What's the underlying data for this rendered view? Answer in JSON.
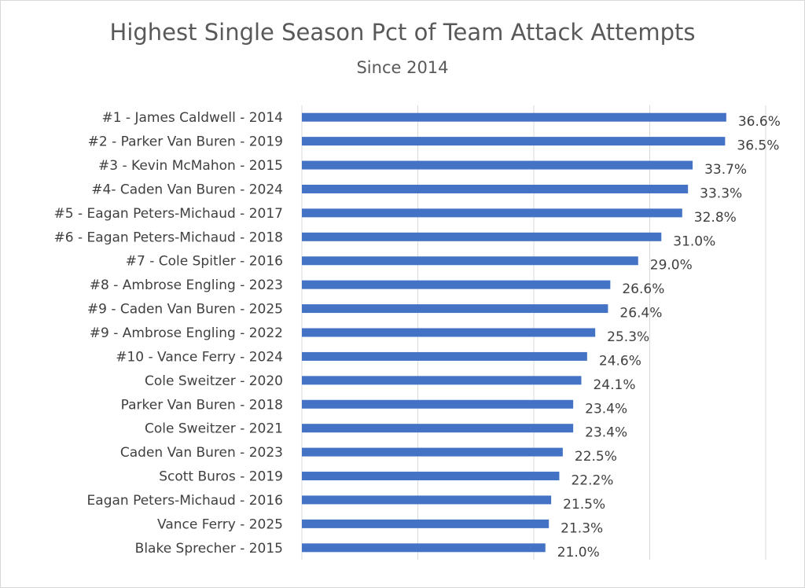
{
  "chart_data": {
    "type": "bar",
    "orientation": "horizontal",
    "title": "Highest Single Season Pct of Team Attack Attempts",
    "subtitle": "Since 2014",
    "xlabel": "",
    "ylabel": "",
    "xlim": [
      0,
      40
    ],
    "x_gridlines": [
      0,
      10,
      20,
      30,
      40
    ],
    "grid": true,
    "legend": "none",
    "bar_color": "#4472c4",
    "categories": [
      "#1 - James Caldwell - 2014",
      "#2 - Parker Van Buren - 2019",
      "#3 - Kevin McMahon - 2015",
      "#4- Caden Van Buren - 2024",
      "#5 - Eagan Peters-Michaud - 2017",
      "#6 - Eagan Peters-Michaud - 2018",
      "#7 - Cole Spitler - 2016",
      "#8 - Ambrose Engling - 2023",
      "#9 - Caden Van Buren - 2025",
      "#9 - Ambrose Engling - 2022",
      "#10 - Vance Ferry - 2024",
      "Cole Sweitzer - 2020",
      "Parker Van Buren - 2018",
      "Cole Sweitzer - 2021",
      "Caden Van Buren - 2023",
      "Scott Buros - 2019",
      "Eagan Peters-Michaud - 2016",
      "Vance Ferry - 2025",
      "Blake Sprecher - 2015"
    ],
    "values": [
      36.6,
      36.5,
      33.7,
      33.3,
      32.8,
      31.0,
      29.0,
      26.6,
      26.4,
      25.3,
      24.6,
      24.1,
      23.4,
      23.4,
      22.5,
      22.2,
      21.5,
      21.3,
      21.0
    ],
    "value_labels": [
      "36.6%",
      "36.5%",
      "33.7%",
      "33.3%",
      "32.8%",
      "31.0%",
      "29.0%",
      "26.6%",
      "26.4%",
      "25.3%",
      "24.6%",
      "24.1%",
      "23.4%",
      "23.4%",
      "22.5%",
      "22.2%",
      "21.5%",
      "21.3%",
      "21.0%"
    ]
  }
}
